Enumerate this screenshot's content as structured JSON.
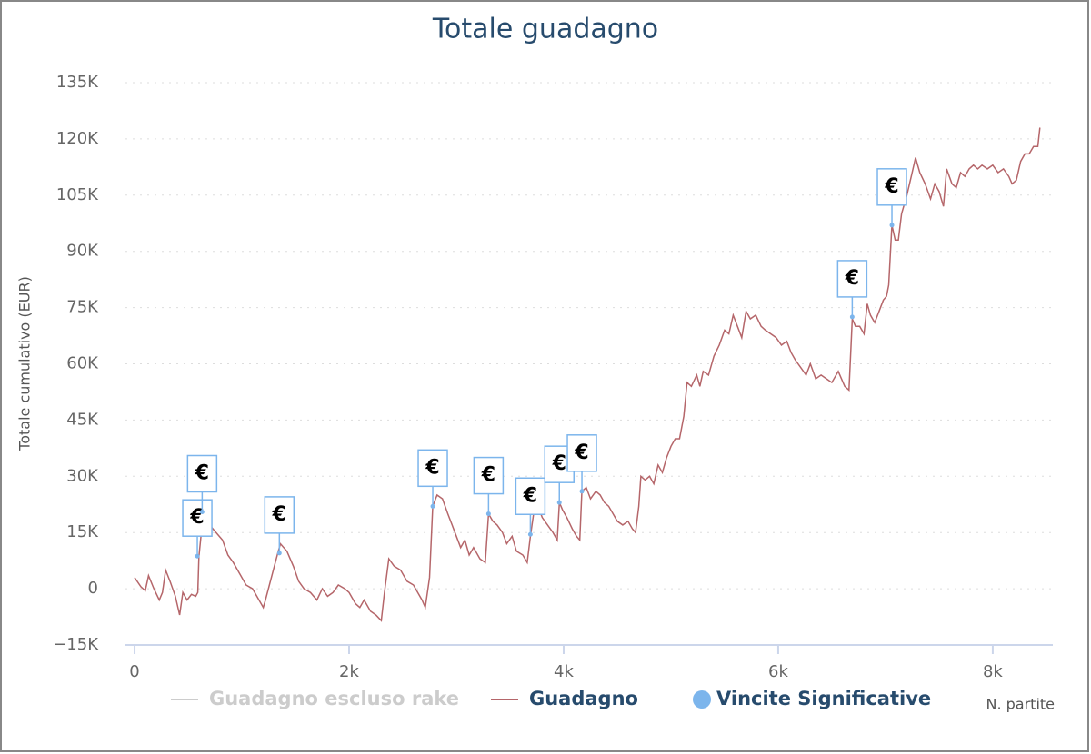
{
  "chart_data": {
    "type": "line",
    "title": "Totale guadagno",
    "ylabel": "Totale cumulativo (EUR)",
    "xlabel": "N. partite",
    "xlim": [
      -85,
      8560
    ],
    "ylim": [
      -15000,
      135000
    ],
    "xticks": [
      0,
      {
        "value": 2000,
        "label": "2k"
      },
      {
        "value": 4000,
        "label": "4k"
      },
      {
        "value": 6000,
        "label": "6k"
      },
      {
        "value": 8000,
        "label": "8k"
      }
    ],
    "yticks": [
      {
        "value": -15000,
        "label": "−15K"
      },
      0,
      {
        "value": 15000,
        "label": "15K"
      },
      {
        "value": 30000,
        "label": "30K"
      },
      {
        "value": 45000,
        "label": "45K"
      },
      {
        "value": 60000,
        "label": "60K"
      },
      {
        "value": 75000,
        "label": "75K"
      },
      {
        "value": 90000,
        "label": "90K"
      },
      {
        "value": 105000,
        "label": "105K"
      },
      {
        "value": 120000,
        "label": "120K"
      },
      {
        "value": 135000,
        "label": "135K"
      }
    ],
    "grid": true,
    "legend": "bottom",
    "series": [
      {
        "name": "Guadagno escluso rake",
        "color": "#cccccc",
        "visible": false
      },
      {
        "name": "Guadagno",
        "color": "#b5666a",
        "x": [
          0,
          60,
          100,
          130,
          180,
          230,
          260,
          290,
          330,
          380,
          420,
          450,
          490,
          530,
          570,
          590,
          600,
          640,
          700,
          760,
          820,
          870,
          920,
          980,
          1040,
          1100,
          1160,
          1200,
          1220,
          1340,
          1360,
          1420,
          1480,
          1530,
          1580,
          1640,
          1700,
          1750,
          1800,
          1850,
          1900,
          1960,
          2000,
          2060,
          2100,
          2140,
          2200,
          2250,
          2300,
          2330,
          2370,
          2420,
          2480,
          2540,
          2600,
          2640,
          2680,
          2710,
          2750,
          2780,
          2820,
          2870,
          2920,
          2960,
          3000,
          3040,
          3080,
          3120,
          3160,
          3220,
          3270,
          3300,
          3340,
          3380,
          3430,
          3470,
          3520,
          3560,
          3620,
          3660,
          3690,
          3720,
          3760,
          3800,
          3850,
          3900,
          3940,
          3960,
          3990,
          4030,
          4080,
          4120,
          4150,
          4170,
          4210,
          4250,
          4300,
          4340,
          4380,
          4420,
          4460,
          4500,
          4550,
          4600,
          4640,
          4670,
          4700,
          4720,
          4760,
          4800,
          4840,
          4880,
          4920,
          4960,
          5000,
          5040,
          5080,
          5120,
          5150,
          5190,
          5240,
          5270,
          5300,
          5350,
          5400,
          5450,
          5500,
          5540,
          5580,
          5620,
          5660,
          5700,
          5740,
          5790,
          5840,
          5880,
          5930,
          5980,
          6030,
          6080,
          6120,
          6160,
          6210,
          6260,
          6300,
          6350,
          6400,
          6450,
          6500,
          6560,
          6620,
          6660,
          6690,
          6720,
          6760,
          6800,
          6830,
          6860,
          6900,
          6940,
          6980,
          7010,
          7030,
          7060,
          7090,
          7120,
          7150,
          7200,
          7240,
          7280,
          7320,
          7370,
          7420,
          7460,
          7500,
          7540,
          7570,
          7620,
          7660,
          7700,
          7740,
          7780,
          7820,
          7860,
          7900,
          7950,
          8000,
          8050,
          8100,
          8150,
          8180,
          8220,
          8260,
          8300,
          8340,
          8380,
          8420,
          8440
        ],
        "values": [
          3000,
          500,
          -500,
          3500,
          0,
          -3000,
          -1000,
          5000,
          2000,
          -2000,
          -7000,
          -1000,
          -3000,
          -1500,
          -2000,
          -1000,
          8500,
          20000,
          17000,
          15000,
          13000,
          9000,
          7000,
          4000,
          1000,
          0,
          -3000,
          -5000,
          -3000,
          10000,
          12000,
          10000,
          6000,
          2000,
          0,
          -1000,
          -3000,
          0,
          -2000,
          -1000,
          1000,
          0,
          -1000,
          -4000,
          -5000,
          -3000,
          -6000,
          -7000,
          -8500,
          -1000,
          8000,
          6000,
          5000,
          2000,
          1000,
          -1000,
          -3000,
          -5000,
          3000,
          22000,
          25000,
          24000,
          20000,
          17000,
          14000,
          11000,
          13000,
          9000,
          11000,
          8000,
          7000,
          20000,
          18000,
          17000,
          15000,
          12000,
          14000,
          10000,
          9000,
          7000,
          14000,
          20000,
          22000,
          19000,
          17000,
          15000,
          13000,
          23000,
          21000,
          19000,
          16000,
          14000,
          13000,
          26000,
          27000,
          24000,
          26000,
          25000,
          23000,
          22000,
          20000,
          18000,
          17000,
          18000,
          16000,
          15000,
          22000,
          30000,
          29000,
          30000,
          28000,
          33000,
          31000,
          35000,
          38000,
          40000,
          40000,
          46000,
          55000,
          54000,
          57000,
          54000,
          58000,
          57000,
          62000,
          65000,
          69000,
          68000,
          73000,
          70000,
          67000,
          74000,
          72000,
          73000,
          70000,
          69000,
          68000,
          67000,
          65000,
          66000,
          63000,
          61000,
          59000,
          57000,
          60000,
          56000,
          57000,
          56000,
          55000,
          58000,
          54000,
          53000,
          72000,
          70000,
          70000,
          68000,
          76000,
          73000,
          71000,
          74000,
          77000,
          78000,
          81000,
          97000,
          93000,
          93000,
          100000,
          105000,
          110000,
          115000,
          111000,
          108000,
          104000,
          108000,
          106000,
          102000,
          112000,
          108000,
          107000,
          111000,
          110000,
          112000,
          113000,
          112000,
          113000,
          112000,
          113000,
          111000,
          112000,
          110000,
          108000,
          109000,
          114000,
          116000,
          116000,
          118000,
          118000,
          123000
        ]
      },
      {
        "name": "Vincite Significative",
        "color": "#7cb5ec",
        "x": [
          585,
          630,
          1350,
          2780,
          3300,
          3690,
          3960,
          4170,
          6690,
          7060
        ],
        "values": [
          8700,
          20500,
          9500,
          22000,
          20000,
          14500,
          23000,
          26000,
          72500,
          97000
        ],
        "labels": [
          "€",
          "€",
          "€",
          "€",
          "€",
          "€",
          "€",
          "€",
          "€",
          "€"
        ]
      }
    ]
  }
}
